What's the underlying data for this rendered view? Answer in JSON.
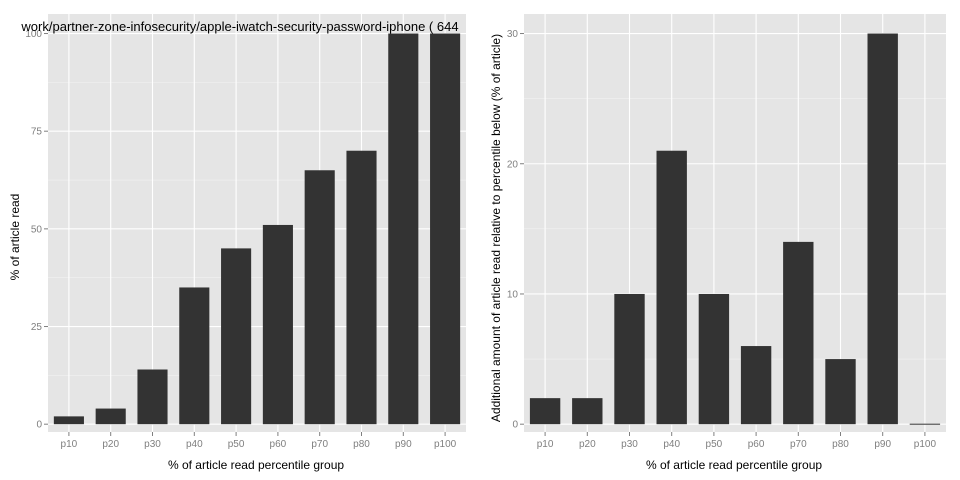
{
  "chart_data": [
    {
      "type": "bar",
      "title": "work/partner-zone-infosecurity/apple-iwatch-security-password-iphone ( 644",
      "xlabel": "% of article read percentile group",
      "ylabel": "% of article read",
      "categories": [
        "p10",
        "p20",
        "p30",
        "p40",
        "p50",
        "p60",
        "p70",
        "p80",
        "p90",
        "p100"
      ],
      "values": [
        2,
        4,
        14,
        35,
        45,
        51,
        65,
        70,
        100,
        100
      ],
      "ylim": [
        -2,
        105
      ],
      "yticks": [
        0,
        25,
        50,
        75,
        100
      ],
      "grid": true
    },
    {
      "type": "bar",
      "title": "",
      "xlabel": "% of article read percentile group",
      "ylabel": "Additional amount of article read relative to percentile below (% of article)",
      "categories": [
        "p10",
        "p20",
        "p30",
        "p40",
        "p50",
        "p60",
        "p70",
        "p80",
        "p90",
        "p100"
      ],
      "values": [
        2,
        2,
        10,
        21,
        10,
        6,
        14,
        5,
        30,
        0
      ],
      "ylim": [
        -0.6,
        31.5
      ],
      "yticks": [
        0,
        10,
        20,
        30
      ],
      "grid": true
    }
  ],
  "colors": {
    "panel_background": "#e5e5e5",
    "bar_fill": "#333333",
    "grid": "#ffffff",
    "tick_text": "#7f7f7f"
  }
}
